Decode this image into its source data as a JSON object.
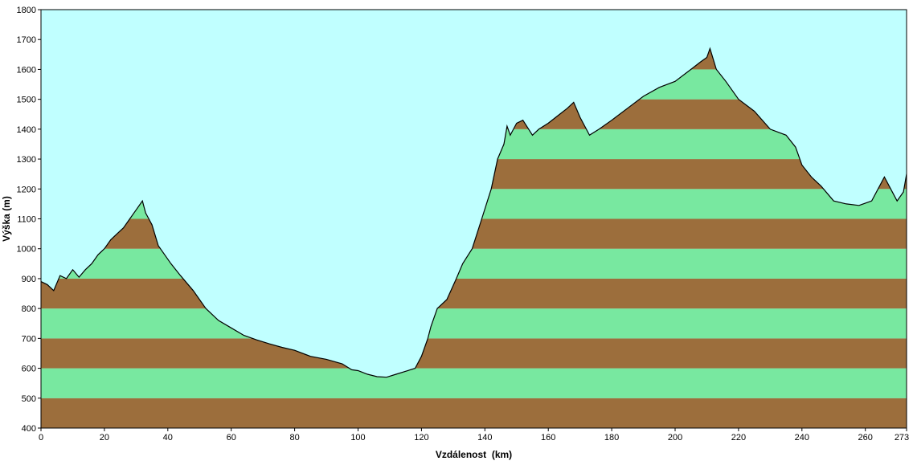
{
  "chart_data": {
    "type": "area",
    "xlabel": "Vzdálenost  (km)",
    "ylabel": "Výška (m)",
    "xlim": [
      0,
      273
    ],
    "ylim": [
      400,
      1800
    ],
    "x_ticks": [
      "0",
      "20",
      "40",
      "60",
      "80",
      "100",
      "120",
      "140",
      "160",
      "180",
      "200",
      "220",
      "240",
      "260",
      "273"
    ],
    "x_tick_values": [
      0,
      20,
      40,
      60,
      80,
      100,
      120,
      140,
      160,
      180,
      200,
      220,
      240,
      260,
      273
    ],
    "y_ticks": [
      "400",
      "500",
      "600",
      "700",
      "800",
      "900",
      "1000",
      "1100",
      "1200",
      "1300",
      "1400",
      "1500",
      "1600",
      "1700",
      "1800"
    ],
    "y_tick_values": [
      400,
      500,
      600,
      700,
      800,
      900,
      1000,
      1100,
      1200,
      1300,
      1400,
      1500,
      1600,
      1700,
      1800
    ],
    "colors": {
      "sky": "#c0ffff",
      "band_dark": "#9c6e3c",
      "band_light": "#78e8a0",
      "outline": "#000000"
    },
    "band_step": 100,
    "series": [
      {
        "x": [
          0,
          2,
          4,
          6,
          8,
          10,
          12,
          14,
          16,
          18,
          20,
          22,
          24,
          26,
          28,
          30,
          32,
          33,
          35,
          37,
          39,
          41,
          44,
          48,
          52,
          56,
          60,
          64,
          68,
          72,
          76,
          80,
          85,
          90,
          95,
          98,
          100,
          103,
          106,
          109,
          112,
          115,
          118,
          120,
          121,
          122,
          123,
          125,
          128,
          131,
          133,
          136,
          139,
          142,
          144,
          146,
          147,
          148,
          150,
          152,
          155,
          157,
          160,
          163,
          166,
          168,
          170,
          173,
          176,
          180,
          185,
          190,
          195,
          200,
          205,
          208,
          210,
          211,
          213,
          216,
          220,
          225,
          230,
          235,
          238,
          240,
          243,
          246,
          250,
          254,
          258,
          262,
          264,
          266,
          268,
          270,
          272,
          273
        ],
        "y": [
          890,
          880,
          860,
          910,
          900,
          930,
          905,
          930,
          950,
          980,
          1000,
          1030,
          1050,
          1070,
          1100,
          1130,
          1160,
          1120,
          1080,
          1010,
          980,
          950,
          910,
          860,
          800,
          760,
          735,
          710,
          695,
          682,
          670,
          660,
          640,
          630,
          615,
          595,
          592,
          580,
          572,
          570,
          580,
          590,
          600,
          640,
          670,
          700,
          740,
          800,
          830,
          900,
          950,
          1000,
          1100,
          1200,
          1300,
          1350,
          1410,
          1380,
          1420,
          1430,
          1380,
          1400,
          1420,
          1445,
          1470,
          1490,
          1440,
          1380,
          1400,
          1430,
          1470,
          1510,
          1540,
          1560,
          1600,
          1625,
          1640,
          1670,
          1600,
          1560,
          1500,
          1460,
          1400,
          1380,
          1340,
          1280,
          1240,
          1210,
          1160,
          1150,
          1145,
          1160,
          1200,
          1240,
          1200,
          1160,
          1190,
          1250
        ]
      }
    ]
  }
}
